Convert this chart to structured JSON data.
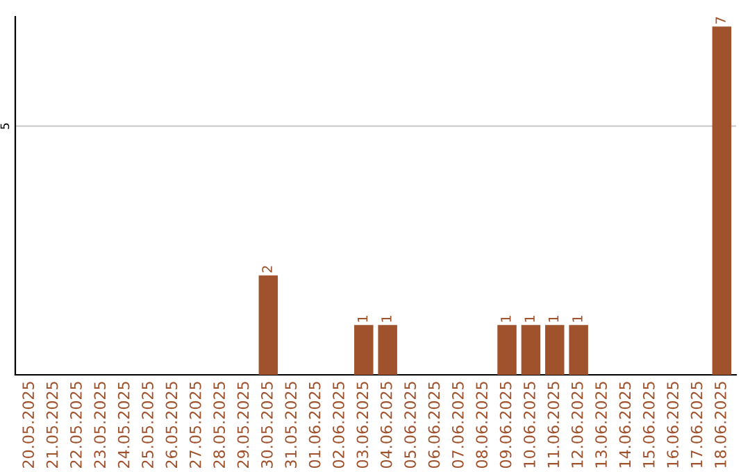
{
  "chart_data": {
    "type": "bar",
    "categories": [
      "20.05.2025",
      "21.05.2025",
      "22.05.2025",
      "23.05.2025",
      "24.05.2025",
      "25.05.2025",
      "26.05.2025",
      "27.05.2025",
      "28.05.2025",
      "29.05.2025",
      "30.05.2025",
      "31.05.2025",
      "01.06.2025",
      "02.06.2025",
      "03.06.2025",
      "04.06.2025",
      "05.06.2025",
      "06.06.2025",
      "07.06.2025",
      "08.06.2025",
      "09.06.2025",
      "10.06.2025",
      "11.06.2025",
      "12.06.2025",
      "13.06.2025",
      "14.06.2025",
      "15.06.2025",
      "16.06.2025",
      "17.06.2025",
      "18.06.2025"
    ],
    "values": [
      0,
      0,
      0,
      0,
      0,
      0,
      0,
      0,
      0,
      0,
      2,
      0,
      0,
      0,
      1,
      1,
      0,
      0,
      0,
      0,
      1,
      1,
      1,
      1,
      0,
      0,
      0,
      0,
      0,
      7
    ],
    "value_labels": [
      null,
      null,
      null,
      null,
      null,
      null,
      null,
      null,
      null,
      null,
      "2",
      null,
      null,
      null,
      "1",
      "1",
      null,
      null,
      null,
      null,
      "1",
      "1",
      "1",
      "1",
      null,
      null,
      null,
      null,
      null,
      "7"
    ],
    "color": "#a0522d",
    "ylim": [
      0,
      7.2
    ],
    "yticks": [
      5
    ],
    "grid": "y"
  }
}
